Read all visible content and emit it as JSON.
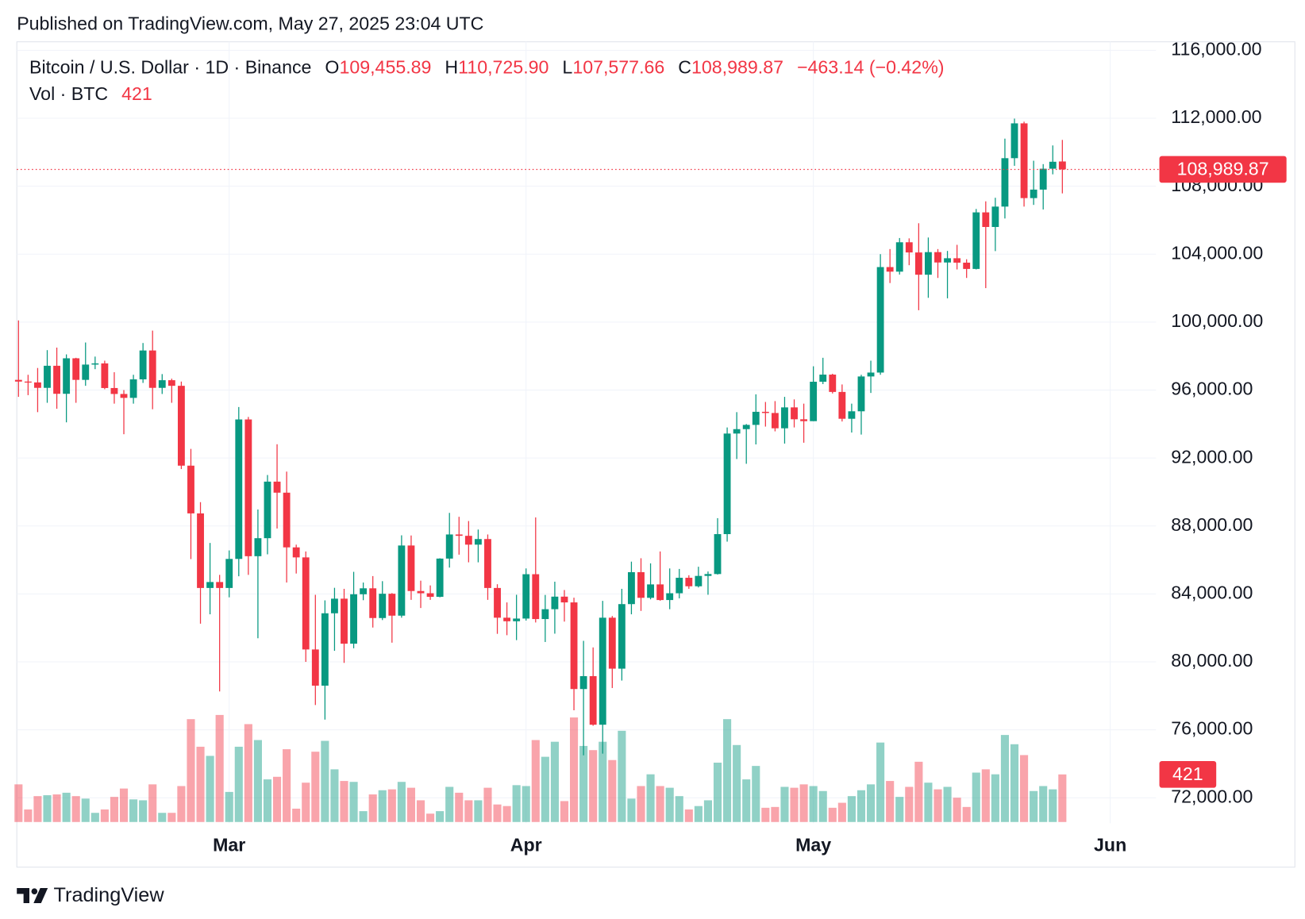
{
  "header": {
    "published": "Published on TradingView.com, May 27, 2025 23:04 UTC",
    "brand": "TradingView"
  },
  "chart_data": {
    "type": "candlestick",
    "legend": {
      "symbol": "Bitcoin / U.S. Dollar · 1D · Binance",
      "open_label": "O",
      "open": "109,455.89",
      "high_label": "H",
      "high": "110,725.90",
      "low_label": "L",
      "low": "107,577.66",
      "close_label": "C",
      "close": "108,989.87",
      "change": "−463.14 (−0.42%)",
      "volume_label": "Vol · BTC",
      "volume": "421"
    },
    "up_color": "#089981",
    "down_color": "#f23645",
    "grid": true,
    "last_price_line": true,
    "xlim": [
      -0.175,
      118.78
    ],
    "xticks": [
      {
        "value": 22,
        "label": "Mar"
      },
      {
        "value": 53,
        "label": "Apr"
      },
      {
        "value": 83,
        "label": "May"
      },
      {
        "value": 114,
        "label": "Jun"
      }
    ],
    "ylim": [
      70500,
      116500
    ],
    "yticks": [
      {
        "value": 72000,
        "label": "72,000.00"
      },
      {
        "value": 76000,
        "label": "76,000.00"
      },
      {
        "value": 80000,
        "label": "80,000.00"
      },
      {
        "value": 84000,
        "label": "84,000.00"
      },
      {
        "value": 88000,
        "label": "88,000.00"
      },
      {
        "value": 92000,
        "label": "92,000.00"
      },
      {
        "value": 96000,
        "label": "96,000.00"
      },
      {
        "value": 100000,
        "label": "100,000.00"
      },
      {
        "value": 104000,
        "label": "104,000.00"
      },
      {
        "value": 108000,
        "label": "108,000.00"
      },
      {
        "value": 112000,
        "label": "112,000.00"
      },
      {
        "value": 116000,
        "label": "116,000.00"
      }
    ],
    "open": [
      96600,
      96500,
      96450,
      96130,
      97430,
      95780,
      97870,
      96600,
      97500,
      97570,
      96120,
      95770,
      95540,
      96630,
      98330,
      96130,
      96580,
      96250,
      91550,
      88740,
      84350,
      84700,
      84350,
      86060,
      94270,
      86220,
      87280,
      90610,
      89960,
      86740,
      86150,
      80730,
      78600,
      82860,
      83720,
      81070,
      83980,
      84330,
      82580,
      84010,
      82720,
      86850,
      84170,
      84040,
      83830,
      86080,
      87500,
      87420,
      86900,
      87230,
      84350,
      82600,
      82390,
      82550,
      85160,
      82520,
      83100,
      83840,
      83500,
      78400,
      79160,
      76300,
      82600,
      79600,
      83400,
      85280,
      83770,
      84560,
      83640,
      84040,
      84950,
      84450,
      85060,
      85170,
      87520,
      93440,
      93700,
      93950,
      94720,
      94650,
      93750,
      94980,
      94280,
      94170,
      96490,
      96910,
      95890,
      94310,
      94750,
      96800,
      97030,
      103240,
      102970,
      104700,
      104100,
      102790,
      104120,
      103510,
      103760,
      103500,
      103130,
      106460,
      105600,
      106800,
      109650,
      111700,
      107300,
      107800,
      109030,
      109455.89
    ],
    "high": [
      100100,
      96900,
      97300,
      98350,
      98500,
      98100,
      97900,
      98800,
      97970,
      97730,
      97050,
      96000,
      96900,
      98770,
      99500,
      96940,
      96670,
      96500,
      92540,
      89400,
      87000,
      85120,
      86560,
      95000,
      94420,
      88970,
      91000,
      92810,
      91200,
      86900,
      86500,
      83950,
      83620,
      84360,
      84300,
      85300,
      84670,
      85050,
      84750,
      84050,
      87450,
      87440,
      84780,
      84500,
      86100,
      88770,
      88540,
      88290,
      87790,
      87500,
      84570,
      83500,
      83950,
      85500,
      88500,
      83940,
      84720,
      84230,
      83780,
      81240,
      80850,
      83590,
      82700,
      84300,
      85900,
      86100,
      85800,
      86500,
      85500,
      85470,
      85100,
      85600,
      85320,
      88460,
      93800,
      94700,
      94000,
      95750,
      95300,
      95350,
      95600,
      95450,
      95200,
      97400,
      97900,
      96960,
      96330,
      95200,
      96900,
      97730,
      104000,
      104300,
      104950,
      104930,
      105820,
      104980,
      104300,
      104190,
      104550,
      103700,
      106660,
      107110,
      107320,
      110800,
      111980,
      111800,
      109500,
      109300,
      110400,
      110725.9
    ],
    "low": [
      95600,
      95700,
      94700,
      95250,
      94900,
      94100,
      95250,
      96250,
      97230,
      96050,
      95200,
      93400,
      95200,
      96420,
      94870,
      95770,
      95250,
      91350,
      86050,
      82250,
      82800,
      78260,
      83800,
      85040,
      85120,
      81390,
      86330,
      87850,
      84670,
      85200,
      80000,
      77460,
      76600,
      80650,
      79940,
      80800,
      83630,
      82020,
      82460,
      81130,
      82600,
      83650,
      83170,
      83650,
      83800,
      85550,
      86310,
      85860,
      85860,
      83650,
      81650,
      81570,
      81280,
      82430,
      82320,
      81170,
      81660,
      82370,
      77150,
      74500,
      76240,
      74600,
      78460,
      78900,
      82800,
      83000,
      83680,
      83600,
      83100,
      83740,
      84300,
      84380,
      83950,
      85140,
      87080,
      91940,
      91660,
      92800,
      93850,
      93570,
      92850,
      93800,
      92900,
      94170,
      96350,
      95800,
      94150,
      93500,
      93380,
      95830,
      96900,
      102300,
      102800,
      103350,
      100700,
      101430,
      102600,
      101400,
      103100,
      102600,
      103100,
      102000,
      104180,
      106100,
      109200,
      106800,
      106900,
      106630,
      108700,
      107577.66
    ],
    "close": [
      96500,
      96450,
      96130,
      97430,
      95780,
      97870,
      96600,
      97500,
      97570,
      96120,
      95770,
      95540,
      96630,
      98330,
      96130,
      96580,
      96250,
      91550,
      88740,
      84350,
      84700,
      84350,
      86060,
      94270,
      86220,
      87280,
      90610,
      89960,
      86740,
      86150,
      80730,
      78600,
      82860,
      83720,
      81070,
      83980,
      84330,
      82580,
      84010,
      82720,
      86850,
      84170,
      84040,
      83830,
      86080,
      87500,
      87420,
      86900,
      87230,
      84350,
      82600,
      82390,
      82550,
      85160,
      82520,
      83100,
      83840,
      83500,
      78400,
      79160,
      76300,
      82600,
      79600,
      83400,
      85280,
      83770,
      84560,
      83640,
      84040,
      84950,
      84450,
      85060,
      85170,
      87520,
      93440,
      93700,
      93950,
      94720,
      94650,
      93750,
      94980,
      94280,
      94170,
      96490,
      96910,
      95890,
      94310,
      94750,
      96800,
      97030,
      103240,
      102970,
      104700,
      104100,
      102790,
      104120,
      103510,
      103760,
      103500,
      103130,
      106460,
      105600,
      106800,
      109650,
      111700,
      107300,
      107800,
      109030,
      109440,
      108989.87
    ],
    "volume": [
      333,
      111,
      229,
      237,
      244,
      259,
      229,
      207,
      81,
      111,
      222,
      296,
      200,
      192,
      333,
      81,
      81,
      318,
      910,
      666,
      585,
      947,
      266,
      666,
      866,
      725,
      377,
      400,
      644,
      118,
      348,
      622,
      718,
      466,
      363,
      355,
      96,
      244,
      281,
      289,
      355,
      303,
      192,
      74,
      96,
      311,
      259,
      192,
      192,
      303,
      155,
      141,
      326,
      318,
      725,
      577,
      710,
      185,
      925,
      673,
      636,
      710,
      548,
      807,
      207,
      318,
      422,
      318,
      303,
      229,
      111,
      141,
      192,
      525,
      910,
      681,
      377,
      496,
      126,
      133,
      311,
      303,
      333,
      318,
      274,
      126,
      170,
      229,
      281,
      333,
      703,
      363,
      222,
      311,
      533,
      348,
      289,
      311,
      215,
      133,
      437,
      466,
      422,
      770,
      688,
      592,
      274,
      318,
      289,
      421
    ]
  }
}
